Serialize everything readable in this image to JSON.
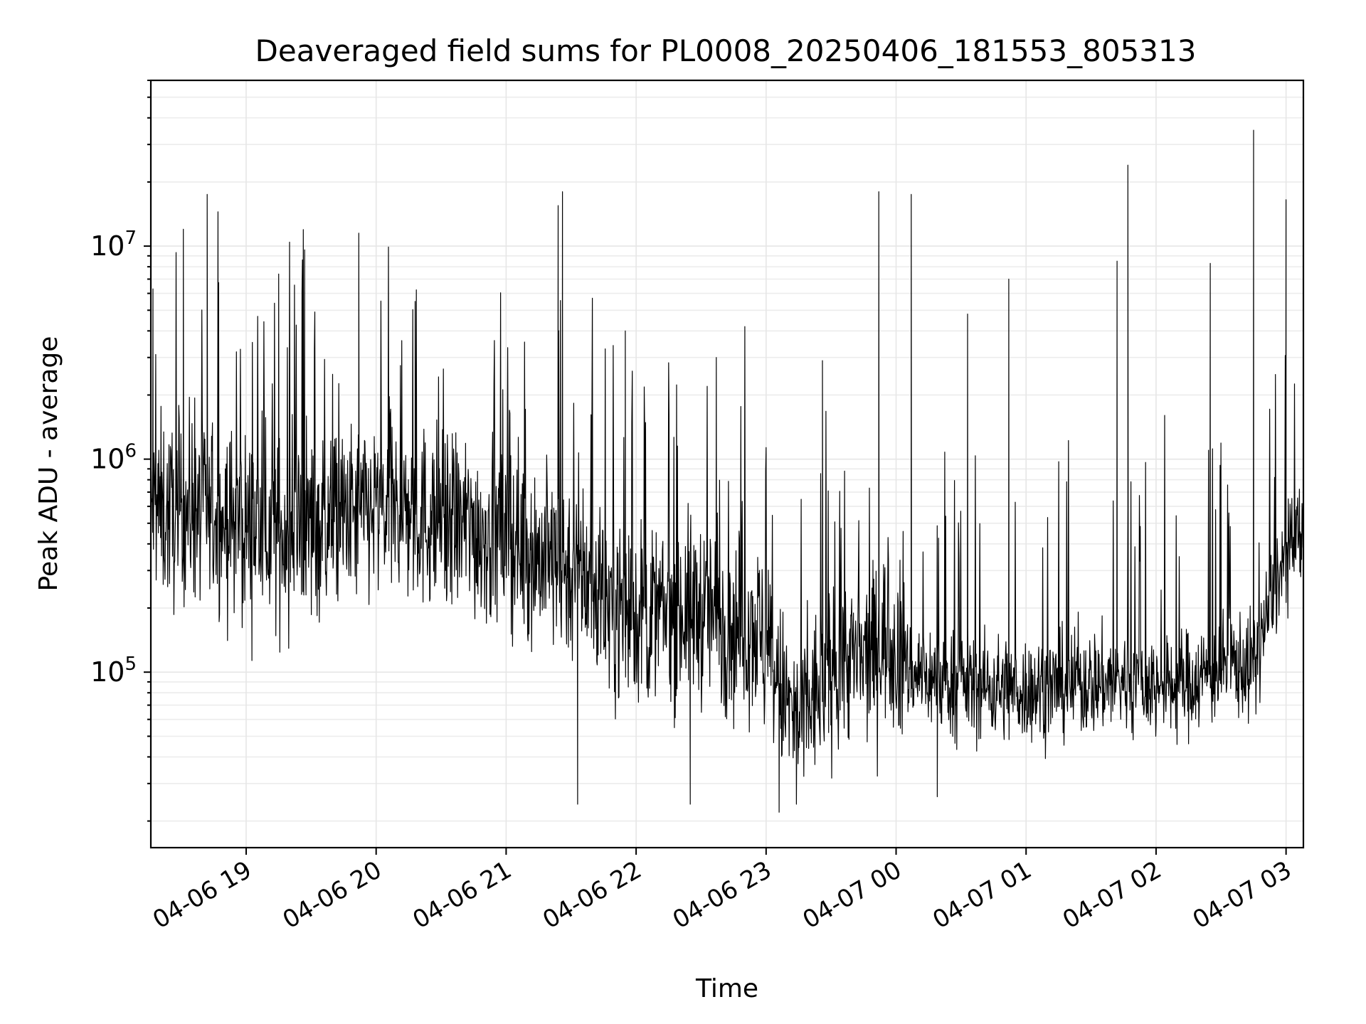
{
  "chart_data": {
    "type": "line",
    "title": "Deaveraged field sums for PL0008_20250406_181553_805313",
    "xlabel": "Time",
    "ylabel": "Peak ADU - average",
    "yscale": "log",
    "ylim": [
      15000,
      60000000
    ],
    "xlim": [
      "2025-04-06 18:16",
      "2025-04-07 03:08"
    ],
    "x_ticks": [
      "04-06 19",
      "04-06 20",
      "04-06 21",
      "04-06 22",
      "04-06 23",
      "04-07 00",
      "04-07 01",
      "04-07 02",
      "04-07 03"
    ],
    "x_tick_times": [
      "2025-04-06 19:00",
      "2025-04-06 20:00",
      "2025-04-06 21:00",
      "2025-04-06 22:00",
      "2025-04-06 23:00",
      "2025-04-07 00:00",
      "2025-04-07 01:00",
      "2025-04-07 02:00",
      "2025-04-07 03:00"
    ],
    "y_ticks": [
      {
        "base": "10",
        "exp": "5",
        "value": 100000
      },
      {
        "base": "10",
        "exp": "6",
        "value": 1000000
      },
      {
        "base": "10",
        "exp": "7",
        "value": 10000000
      }
    ],
    "grid": true,
    "color": "#000000",
    "series": [
      {
        "x": [
          "2025-04-06 18:16",
          "2025-04-06 18:25",
          "2025-04-06 18:35",
          "2025-04-06 18:45",
          "2025-04-06 18:55",
          "2025-04-06 19:05",
          "2025-04-06 19:15",
          "2025-04-06 19:25",
          "2025-04-06 19:35",
          "2025-04-06 19:45",
          "2025-04-06 19:55",
          "2025-04-06 20:05",
          "2025-04-06 20:15",
          "2025-04-06 20:25",
          "2025-04-06 20:35",
          "2025-04-06 20:45",
          "2025-04-06 20:55",
          "2025-04-06 21:05",
          "2025-04-06 21:15",
          "2025-04-06 21:25",
          "2025-04-06 21:35",
          "2025-04-06 21:45",
          "2025-04-06 21:55",
          "2025-04-06 22:05",
          "2025-04-06 22:15",
          "2025-04-06 22:25",
          "2025-04-06 22:35",
          "2025-04-06 22:45",
          "2025-04-06 22:55",
          "2025-04-06 23:05",
          "2025-04-06 23:15",
          "2025-04-06 23:25",
          "2025-04-06 23:35",
          "2025-04-06 23:45",
          "2025-04-06 23:55",
          "2025-04-07 00:05",
          "2025-04-07 00:15",
          "2025-04-07 00:25",
          "2025-04-07 00:35",
          "2025-04-07 00:45",
          "2025-04-07 00:55",
          "2025-04-07 01:05",
          "2025-04-07 01:15",
          "2025-04-07 01:25",
          "2025-04-07 01:35",
          "2025-04-07 01:45",
          "2025-04-07 01:55",
          "2025-04-07 02:05",
          "2025-04-07 02:15",
          "2025-04-07 02:25",
          "2025-04-07 02:35",
          "2025-04-07 02:45",
          "2025-04-07 02:55",
          "2025-04-07 03:05"
        ],
        "y": [
          600000,
          550000,
          600000,
          520000,
          500000,
          480000,
          450000,
          460000,
          500000,
          520000,
          560000,
          580000,
          560000,
          520000,
          500000,
          480000,
          430000,
          420000,
          350000,
          320000,
          300000,
          220000,
          200000,
          180000,
          190000,
          200000,
          190000,
          160000,
          170000,
          90000,
          55000,
          85000,
          120000,
          110000,
          150000,
          105000,
          95000,
          90000,
          88000,
          85000,
          82000,
          84000,
          86000,
          88000,
          90000,
          92000,
          88000,
          85000,
          90000,
          100000,
          110000,
          105000,
          260000,
          420000
        ],
        "spikes": [
          {
            "x": "2025-04-06 18:17",
            "y": 6300000
          },
          {
            "x": "2025-04-06 18:31",
            "y": 12000000
          },
          {
            "x": "2025-04-06 18:42",
            "y": 17500000
          },
          {
            "x": "2025-04-06 18:47",
            "y": 14500000
          },
          {
            "x": "2025-04-06 19:15",
            "y": 7400000
          },
          {
            "x": "2025-04-06 19:27",
            "y": 9600000
          },
          {
            "x": "2025-04-06 19:52",
            "y": 11500000
          },
          {
            "x": "2025-04-06 20:18",
            "y": 5500000
          },
          {
            "x": "2025-04-06 21:24",
            "y": 15500000
          },
          {
            "x": "2025-04-06 21:26",
            "y": 18000000
          },
          {
            "x": "2025-04-06 21:55",
            "y": 4000000
          },
          {
            "x": "2025-04-06 22:37",
            "y": 3000000
          },
          {
            "x": "2025-04-06 23:26",
            "y": 2900000
          },
          {
            "x": "2025-04-06 23:52",
            "y": 18000000
          },
          {
            "x": "2025-04-07 00:07",
            "y": 17500000
          },
          {
            "x": "2025-04-07 00:33",
            "y": 4800000
          },
          {
            "x": "2025-04-07 00:52",
            "y": 7000000
          },
          {
            "x": "2025-04-07 01:42",
            "y": 8500000
          },
          {
            "x": "2025-04-07 01:47",
            "y": 24000000
          },
          {
            "x": "2025-04-07 02:25",
            "y": 8300000
          },
          {
            "x": "2025-04-07 02:45",
            "y": 35000000
          },
          {
            "x": "2025-04-07 03:00",
            "y": 16500000
          }
        ],
        "dips": [
          {
            "x": "2025-04-06 21:33",
            "y": 24000
          },
          {
            "x": "2025-04-06 22:25",
            "y": 24000
          },
          {
            "x": "2025-04-06 23:06",
            "y": 22000
          },
          {
            "x": "2025-04-06 23:14",
            "y": 24000
          },
          {
            "x": "2025-04-07 00:19",
            "y": 26000
          }
        ]
      }
    ]
  }
}
